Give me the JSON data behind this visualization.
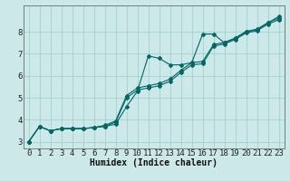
{
  "xlabel": "Humidex (Indice chaleur)",
  "bg_color": "#cce8e8",
  "grid_color": "#99cccc",
  "line_color": "#006666",
  "xlim": [
    -0.5,
    23.5
  ],
  "ylim": [
    2.7,
    9.2
  ],
  "yticks": [
    3,
    4,
    5,
    6,
    7,
    8
  ],
  "xticks": [
    0,
    1,
    2,
    3,
    4,
    5,
    6,
    7,
    8,
    9,
    10,
    11,
    12,
    13,
    14,
    15,
    16,
    17,
    18,
    19,
    20,
    21,
    22,
    23
  ],
  "line1_x": [
    0,
    1,
    2,
    3,
    4,
    5,
    6,
    7,
    8,
    9,
    10,
    11,
    12,
    13,
    14,
    15,
    16,
    17,
    18,
    19,
    20,
    21,
    22,
    23
  ],
  "line1_y": [
    3.0,
    3.7,
    3.5,
    3.6,
    3.6,
    3.6,
    3.65,
    3.7,
    3.8,
    4.6,
    5.3,
    6.9,
    6.8,
    6.5,
    6.5,
    6.6,
    7.9,
    7.9,
    7.5,
    7.7,
    8.0,
    8.1,
    8.4,
    8.7
  ],
  "line2_x": [
    0,
    1,
    2,
    3,
    4,
    5,
    6,
    7,
    8,
    9,
    10,
    11,
    12,
    13,
    14,
    15,
    16,
    17,
    18,
    19,
    20,
    21,
    22,
    23
  ],
  "line2_y": [
    3.0,
    3.7,
    3.5,
    3.6,
    3.6,
    3.6,
    3.65,
    3.7,
    3.9,
    5.0,
    5.35,
    5.45,
    5.55,
    5.75,
    6.15,
    6.5,
    6.55,
    7.35,
    7.45,
    7.65,
    7.95,
    8.05,
    8.35,
    8.55
  ],
  "line3_x": [
    0,
    1,
    2,
    3,
    4,
    5,
    6,
    7,
    8,
    9,
    10,
    11,
    12,
    13,
    14,
    15,
    16,
    17,
    18,
    19,
    20,
    21,
    22,
    23
  ],
  "line3_y": [
    3.0,
    3.7,
    3.5,
    3.6,
    3.6,
    3.6,
    3.65,
    3.75,
    3.95,
    5.1,
    5.45,
    5.55,
    5.65,
    5.85,
    6.25,
    6.6,
    6.65,
    7.42,
    7.52,
    7.72,
    8.02,
    8.12,
    8.42,
    8.62
  ],
  "marker": "D",
  "markersize": 2.0,
  "linewidth": 0.8,
  "fontsize_xlabel": 7,
  "fontsize_ticks": 6.5
}
